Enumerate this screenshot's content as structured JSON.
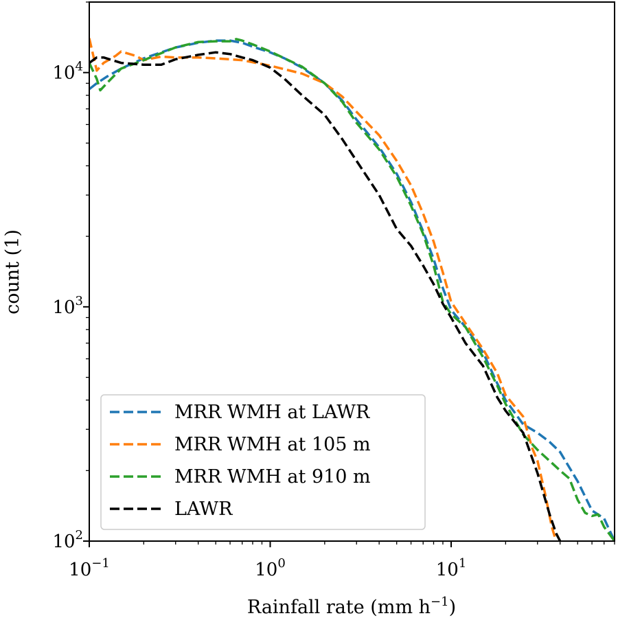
{
  "chart_data": {
    "type": "line",
    "x_scale": "log",
    "y_scale": "log",
    "xlim": [
      0.1,
      80
    ],
    "ylim": [
      100,
      20000
    ],
    "xlabel": {
      "main": "Rainfall rate (mm h",
      "sup": "−1",
      "close": ")"
    },
    "ylabel": "count (1)",
    "x_ticks": [
      {
        "value": 0.1,
        "base": "10",
        "exp": "−1"
      },
      {
        "value": 1,
        "base": "10",
        "exp": "0"
      },
      {
        "value": 10,
        "base": "10",
        "exp": "1"
      }
    ],
    "y_ticks": [
      {
        "value": 100,
        "base": "10",
        "exp": "2"
      },
      {
        "value": 1000,
        "base": "10",
        "exp": "3"
      },
      {
        "value": 10000,
        "base": "10",
        "exp": "4"
      }
    ],
    "grid": false,
    "legend_position": "lower-left",
    "series": [
      {
        "name": "MRR WMH at LAWR",
        "color": "#1f77b4",
        "points": [
          [
            0.1,
            8500
          ],
          [
            0.11,
            9000
          ],
          [
            0.125,
            9600
          ],
          [
            0.15,
            10400
          ],
          [
            0.2,
            11500
          ],
          [
            0.3,
            12800
          ],
          [
            0.4,
            13400
          ],
          [
            0.5,
            13700
          ],
          [
            0.6,
            13700
          ],
          [
            0.7,
            13400
          ],
          [
            0.8,
            12900
          ],
          [
            1.0,
            12200
          ],
          [
            1.2,
            11500
          ],
          [
            1.5,
            10500
          ],
          [
            2.0,
            9000
          ],
          [
            2.5,
            7600
          ],
          [
            3.0,
            6300
          ],
          [
            4.0,
            4800
          ],
          [
            5.0,
            3700
          ],
          [
            6.0,
            2800
          ],
          [
            7.0,
            2100
          ],
          [
            8.0,
            1600
          ],
          [
            9.0,
            1200
          ],
          [
            10.0,
            970
          ],
          [
            12.0,
            820
          ],
          [
            15.0,
            640
          ],
          [
            18.0,
            470
          ],
          [
            20.0,
            400
          ],
          [
            25.0,
            315
          ],
          [
            30.0,
            290
          ],
          [
            35.0,
            265
          ],
          [
            40.0,
            240
          ],
          [
            50.0,
            180
          ],
          [
            60.0,
            135
          ],
          [
            70.0,
            125
          ],
          [
            80.0,
            100
          ]
        ]
      },
      {
        "name": "MRR WMH at 105 m",
        "color": "#ff7f0e",
        "points": [
          [
            0.1,
            14000
          ],
          [
            0.11,
            10200
          ],
          [
            0.12,
            11000
          ],
          [
            0.14,
            11800
          ],
          [
            0.15,
            12300
          ],
          [
            0.18,
            11800
          ],
          [
            0.2,
            11300
          ],
          [
            0.25,
            11700
          ],
          [
            0.3,
            11600
          ],
          [
            0.4,
            11600
          ],
          [
            0.5,
            11500
          ],
          [
            0.7,
            11300
          ],
          [
            1.0,
            10700
          ],
          [
            1.5,
            9900
          ],
          [
            2.0,
            9000
          ],
          [
            2.5,
            7900
          ],
          [
            3.0,
            6800
          ],
          [
            4.0,
            5400
          ],
          [
            5.0,
            4200
          ],
          [
            6.0,
            3300
          ],
          [
            7.0,
            2500
          ],
          [
            8.0,
            1900
          ],
          [
            9.0,
            1400
          ],
          [
            10.0,
            1050
          ],
          [
            12.0,
            850
          ],
          [
            15.0,
            660
          ],
          [
            18.0,
            520
          ],
          [
            20.0,
            420
          ],
          [
            25.0,
            340
          ],
          [
            28.0,
            250
          ],
          [
            30.0,
            220
          ],
          [
            33.0,
            160
          ],
          [
            36.0,
            115
          ],
          [
            38.0,
            100
          ]
        ]
      },
      {
        "name": "MRR WMH at 910 m",
        "color": "#2ca02c",
        "points": [
          [
            0.1,
            11000
          ],
          [
            0.11,
            9400
          ],
          [
            0.115,
            8400
          ],
          [
            0.125,
            9000
          ],
          [
            0.15,
            10400
          ],
          [
            0.2,
            11300
          ],
          [
            0.3,
            12800
          ],
          [
            0.4,
            13500
          ],
          [
            0.5,
            13600
          ],
          [
            0.6,
            13600
          ],
          [
            0.65,
            13900
          ],
          [
            0.7,
            13700
          ],
          [
            0.8,
            13200
          ],
          [
            1.0,
            12300
          ],
          [
            1.2,
            11500
          ],
          [
            1.5,
            10600
          ],
          [
            2.0,
            9000
          ],
          [
            2.5,
            7500
          ],
          [
            3.0,
            6100
          ],
          [
            4.0,
            4700
          ],
          [
            5.0,
            3600
          ],
          [
            6.0,
            2700
          ],
          [
            7.0,
            2050
          ],
          [
            8.0,
            1500
          ],
          [
            9.0,
            1050
          ],
          [
            10.0,
            930
          ],
          [
            12.0,
            820
          ],
          [
            15.0,
            610
          ],
          [
            18.0,
            460
          ],
          [
            20.0,
            385
          ],
          [
            25.0,
            285
          ],
          [
            30.0,
            245
          ],
          [
            35.0,
            220
          ],
          [
            40.0,
            200
          ],
          [
            45.0,
            185
          ],
          [
            50.0,
            150
          ],
          [
            55.0,
            132
          ],
          [
            60.0,
            128
          ],
          [
            65.0,
            130
          ],
          [
            70.0,
            115
          ],
          [
            80.0,
            100
          ]
        ]
      },
      {
        "name": "LAWR",
        "color": "#000000",
        "points": [
          [
            0.1,
            11000
          ],
          [
            0.11,
            11600
          ],
          [
            0.12,
            11600
          ],
          [
            0.15,
            11000
          ],
          [
            0.2,
            10800
          ],
          [
            0.25,
            10800
          ],
          [
            0.3,
            11400
          ],
          [
            0.4,
            11900
          ],
          [
            0.5,
            12200
          ],
          [
            0.6,
            12000
          ],
          [
            0.7,
            11600
          ],
          [
            0.8,
            11300
          ],
          [
            1.0,
            10500
          ],
          [
            1.2,
            9400
          ],
          [
            1.5,
            8000
          ],
          [
            2.0,
            6600
          ],
          [
            2.5,
            5200
          ],
          [
            3.0,
            4200
          ],
          [
            4.0,
            3000
          ],
          [
            5.0,
            2150
          ],
          [
            6.0,
            1820
          ],
          [
            7.0,
            1500
          ],
          [
            8.0,
            1250
          ],
          [
            9.0,
            1030
          ],
          [
            10.0,
            900
          ],
          [
            12.0,
            700
          ],
          [
            15.0,
            560
          ],
          [
            18.0,
            410
          ],
          [
            20.0,
            360
          ],
          [
            25.0,
            290
          ],
          [
            30.0,
            195
          ],
          [
            35.0,
            130
          ],
          [
            38.0,
            108
          ],
          [
            40.0,
            100
          ]
        ]
      }
    ]
  }
}
